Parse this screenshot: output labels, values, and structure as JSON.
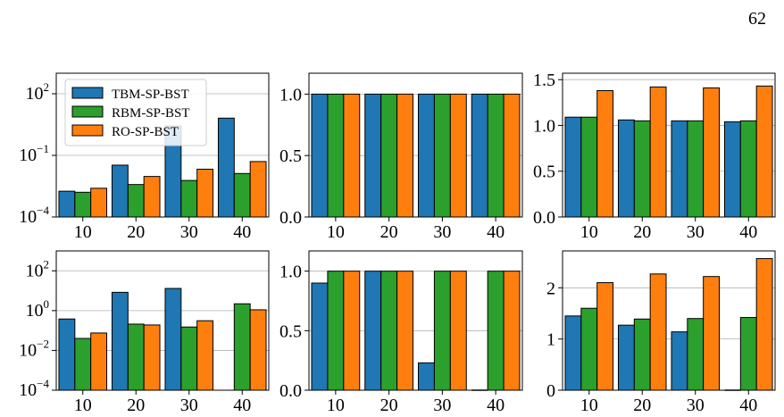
{
  "page": {
    "number": "62"
  },
  "colors": {
    "TBM-SP-BST": "#1f77b4",
    "RBM-SP-BST": "#2ca02c",
    "RO-SP-BST": "#ff7f0e"
  },
  "legend": {
    "placement": "upper-left of first panel",
    "entries": [
      "TBM-SP-BST",
      "RBM-SP-BST",
      "RO-SP-BST"
    ]
  },
  "chart_data": [
    {
      "type": "bar",
      "scale": "log",
      "categories": [
        "10",
        "20",
        "30",
        "40"
      ],
      "ylim": [
        0.0001,
        1000
      ],
      "yticks": [
        {
          "value": 0.0001,
          "base": "10",
          "exp": "−4"
        },
        {
          "value": 0.1,
          "base": "10",
          "exp": "−1"
        },
        {
          "value": 100,
          "base": "10",
          "exp": "2"
        }
      ],
      "grid": "horizontal",
      "series": [
        {
          "name": "TBM-SP-BST",
          "values": [
            0.0018,
            0.0334,
            2.7,
            6.5
          ]
        },
        {
          "name": "RBM-SP-BST",
          "values": [
            0.0016,
            0.0038,
            0.006,
            0.0131
          ]
        },
        {
          "name": "RO-SP-BST",
          "values": [
            0.0025,
            0.0094,
            0.0212,
            0.05
          ]
        }
      ]
    },
    {
      "type": "bar",
      "scale": "linear",
      "categories": [
        "10",
        "20",
        "30",
        "40"
      ],
      "ylim": [
        0,
        1.17
      ],
      "yticks": [
        {
          "value": 0,
          "label": "0.0"
        },
        {
          "value": 0.5,
          "label": "0.5"
        },
        {
          "value": 1,
          "label": "1.0"
        }
      ],
      "grid": "horizontal",
      "series": [
        {
          "name": "TBM-SP-BST",
          "values": [
            1,
            1,
            1,
            1
          ]
        },
        {
          "name": "RBM-SP-BST",
          "values": [
            1,
            1,
            1,
            1
          ]
        },
        {
          "name": "RO-SP-BST",
          "values": [
            1,
            1,
            1,
            1
          ]
        }
      ]
    },
    {
      "type": "bar",
      "scale": "linear",
      "categories": [
        "10",
        "20",
        "30",
        "40"
      ],
      "ylim": [
        0,
        1.57
      ],
      "yticks": [
        {
          "value": 0,
          "label": "0.0"
        },
        {
          "value": 0.5,
          "label": "0.5"
        },
        {
          "value": 1,
          "label": "1.0"
        },
        {
          "value": 1.5,
          "label": "1.5"
        }
      ],
      "grid": "horizontal",
      "series": [
        {
          "name": "TBM-SP-BST",
          "values": [
            1.09,
            1.06,
            1.05,
            1.04
          ]
        },
        {
          "name": "RBM-SP-BST",
          "values": [
            1.09,
            1.05,
            1.05,
            1.05
          ]
        },
        {
          "name": "RO-SP-BST",
          "values": [
            1.38,
            1.42,
            1.41,
            1.43
          ]
        }
      ]
    },
    {
      "type": "bar",
      "scale": "log",
      "categories": [
        "10",
        "20",
        "30",
        "40"
      ],
      "ylim": [
        0.0001,
        1000
      ],
      "yticks": [
        {
          "value": 0.0001,
          "base": "10",
          "exp": "−4"
        },
        {
          "value": 0.01,
          "base": "10",
          "exp": "−2"
        },
        {
          "value": 1,
          "base": "10",
          "exp": "0"
        },
        {
          "value": 100,
          "base": "10",
          "exp": "2"
        }
      ],
      "grid": "horizontal",
      "series": [
        {
          "name": "TBM-SP-BST",
          "values": [
            0.38,
            8.3,
            13,
            null
          ]
        },
        {
          "name": "RBM-SP-BST",
          "values": [
            0.04,
            0.21,
            0.15,
            2.2
          ]
        },
        {
          "name": "RO-SP-BST",
          "values": [
            0.075,
            0.19,
            0.31,
            1.1
          ]
        }
      ]
    },
    {
      "type": "bar",
      "scale": "linear",
      "categories": [
        "10",
        "20",
        "30",
        "40"
      ],
      "ylim": [
        0,
        1.17
      ],
      "yticks": [
        {
          "value": 0,
          "label": "0.0"
        },
        {
          "value": 0.5,
          "label": "0.5"
        },
        {
          "value": 1,
          "label": "1.0"
        }
      ],
      "grid": "horizontal",
      "series": [
        {
          "name": "TBM-SP-BST",
          "values": [
            0.9,
            1,
            0.23,
            0
          ]
        },
        {
          "name": "RBM-SP-BST",
          "values": [
            1,
            1,
            1,
            1
          ]
        },
        {
          "name": "RO-SP-BST",
          "values": [
            1,
            1,
            1,
            1
          ]
        }
      ]
    },
    {
      "type": "bar",
      "scale": "linear",
      "categories": [
        "10",
        "20",
        "30",
        "40"
      ],
      "ylim": [
        0,
        2.72
      ],
      "yticks": [
        {
          "value": 0,
          "label": "0"
        },
        {
          "value": 1,
          "label": "1"
        },
        {
          "value": 2,
          "label": "2"
        }
      ],
      "grid": "horizontal",
      "series": [
        {
          "name": "TBM-SP-BST",
          "values": [
            1.45,
            1.27,
            1.14,
            0
          ]
        },
        {
          "name": "RBM-SP-BST",
          "values": [
            1.6,
            1.39,
            1.4,
            1.42
          ]
        },
        {
          "name": "RO-SP-BST",
          "values": [
            2.1,
            2.27,
            2.22,
            2.57
          ]
        }
      ]
    }
  ]
}
